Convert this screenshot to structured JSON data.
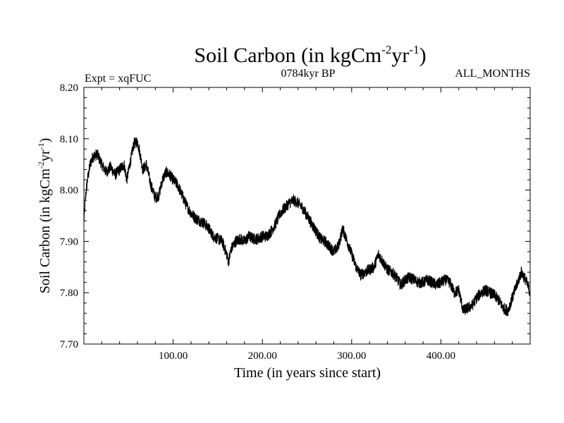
{
  "chart_data": {
    "type": "line",
    "title": "Soil Carbon (in kgCm",
    "title_sup1": "-2",
    "title_mid": "yr",
    "title_sup2": "-1",
    "title_end": ")",
    "subtitle_left": "Expt = xqFUC",
    "subtitle_center": "0784kyr BP",
    "subtitle_right": "ALL_MONTHS",
    "xlabel": "Time (in years since start)",
    "ylabel": "Soil Carbon (in kgCm",
    "ylabel_sup1": "-2",
    "ylabel_mid": "yr",
    "ylabel_sup2": "-1",
    "ylabel_end": ")",
    "xlim": [
      0,
      500
    ],
    "ylim": [
      7.7,
      8.2
    ],
    "xticks": [
      100,
      200,
      300,
      400
    ],
    "xtick_labels": [
      "100.00",
      "200.00",
      "300.00",
      "400.00"
    ],
    "yticks": [
      7.7,
      7.8,
      7.9,
      8.0,
      8.1,
      8.2
    ],
    "ytick_labels": [
      "7.70",
      "7.80",
      "7.90",
      "8.00",
      "8.10",
      "8.20"
    ],
    "series": [
      {
        "name": "Soil Carbon",
        "color": "#000000",
        "noise_amplitude": 0.011,
        "x": [
          0,
          2,
          4,
          7,
          10,
          15,
          20,
          25,
          30,
          35,
          40,
          45,
          48,
          52,
          56,
          60,
          63,
          66,
          70,
          75,
          80,
          84,
          88,
          92,
          96,
          100,
          105,
          110,
          115,
          120,
          125,
          130,
          135,
          140,
          145,
          150,
          155,
          160,
          162,
          165,
          170,
          175,
          180,
          185,
          190,
          195,
          200,
          205,
          210,
          215,
          220,
          225,
          230,
          235,
          240,
          245,
          250,
          255,
          260,
          265,
          270,
          275,
          280,
          285,
          290,
          295,
          300,
          305,
          310,
          315,
          320,
          325,
          330,
          335,
          340,
          345,
          350,
          355,
          360,
          365,
          370,
          375,
          380,
          385,
          390,
          395,
          400,
          405,
          410,
          415,
          420,
          425,
          430,
          435,
          440,
          445,
          450,
          455,
          460,
          465,
          470,
          475,
          480,
          485,
          490,
          495,
          500
        ],
        "y": [
          7.94,
          7.99,
          8.02,
          8.05,
          8.065,
          8.07,
          8.05,
          8.035,
          8.045,
          8.03,
          8.04,
          8.05,
          8.02,
          8.055,
          8.09,
          8.095,
          8.07,
          8.04,
          8.05,
          8.01,
          7.985,
          7.99,
          8.02,
          8.035,
          8.03,
          8.02,
          8.01,
          7.99,
          7.97,
          7.955,
          7.945,
          7.94,
          7.935,
          7.925,
          7.91,
          7.905,
          7.9,
          7.875,
          7.86,
          7.885,
          7.9,
          7.905,
          7.9,
          7.91,
          7.905,
          7.905,
          7.91,
          7.91,
          7.92,
          7.935,
          7.955,
          7.965,
          7.975,
          7.98,
          7.975,
          7.965,
          7.95,
          7.935,
          7.92,
          7.905,
          7.9,
          7.89,
          7.88,
          7.89,
          7.925,
          7.9,
          7.875,
          7.85,
          7.835,
          7.84,
          7.845,
          7.85,
          7.875,
          7.86,
          7.845,
          7.84,
          7.83,
          7.815,
          7.825,
          7.83,
          7.825,
          7.82,
          7.82,
          7.825,
          7.82,
          7.815,
          7.82,
          7.825,
          7.82,
          7.8,
          7.805,
          7.765,
          7.77,
          7.775,
          7.79,
          7.8,
          7.805,
          7.8,
          7.795,
          7.785,
          7.77,
          7.765,
          7.79,
          7.815,
          7.84,
          7.825,
          7.8
        ]
      }
    ]
  }
}
